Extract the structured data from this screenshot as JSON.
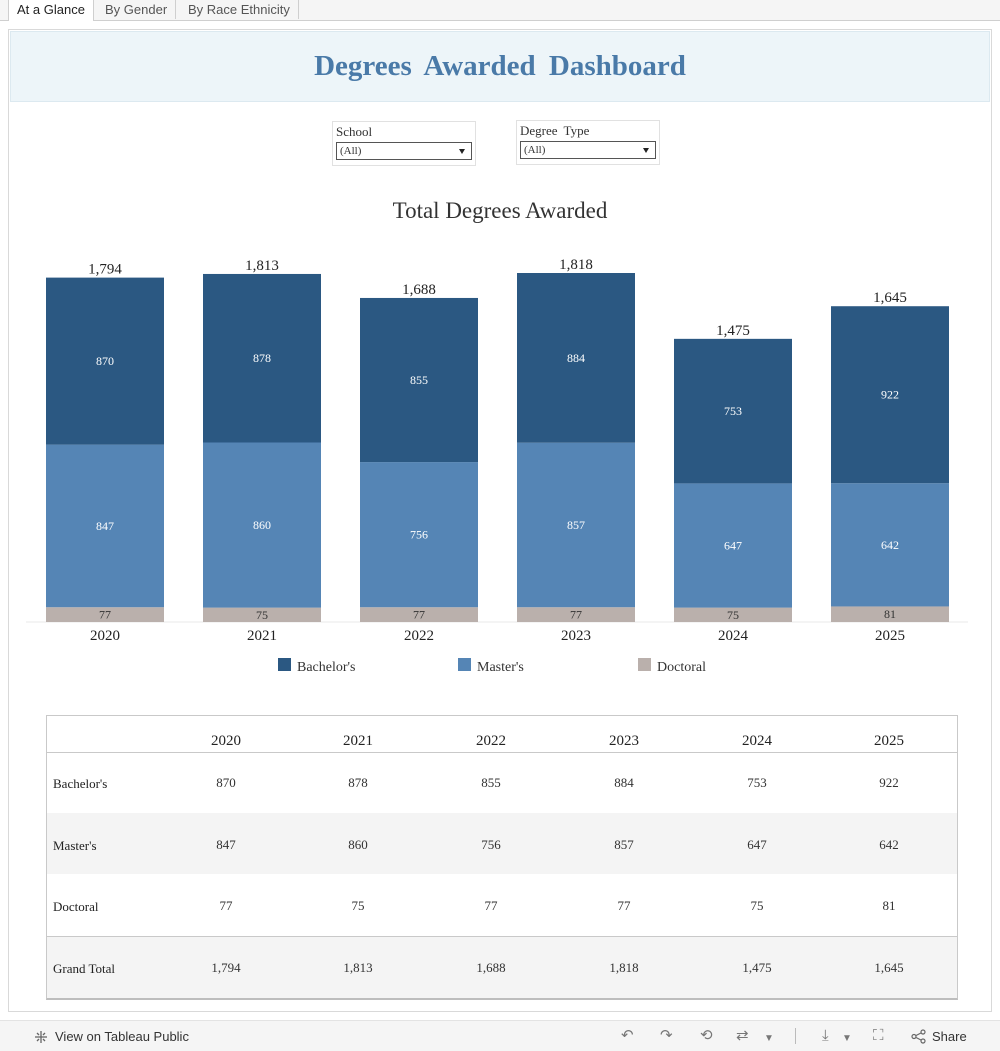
{
  "tabs": [
    {
      "label": "At a Glance",
      "active": true
    },
    {
      "label": "By Gender",
      "active": false
    },
    {
      "label": "By Race Ethnicity",
      "active": false
    }
  ],
  "dashboard": {
    "title": "Degrees  Awarded  Dashboard"
  },
  "filters": {
    "school": {
      "label": "School",
      "value": "(All)"
    },
    "degree_type": {
      "label": "Degree  Type",
      "value": "(All)"
    }
  },
  "colors": {
    "bachelors": "#2b5882",
    "masters": "#5585b5",
    "doctoral": "#bab0ac"
  },
  "chart_data": {
    "type": "bar",
    "stacked": true,
    "title": "Total Degrees Awarded",
    "categories": [
      "2020",
      "2021",
      "2022",
      "2023",
      "2024",
      "2025"
    ],
    "series": [
      {
        "name": "Doctoral",
        "values": [
          77,
          75,
          77,
          77,
          75,
          81
        ]
      },
      {
        "name": "Master's",
        "values": [
          847,
          860,
          756,
          857,
          647,
          642
        ]
      },
      {
        "name": "Bachelor's",
        "values": [
          870,
          878,
          855,
          884,
          753,
          922
        ]
      }
    ],
    "totals": [
      "1,794",
      "1,813",
      "1,688",
      "1,818",
      "1,475",
      "1,645"
    ],
    "totals_numeric": [
      1794,
      1813,
      1688,
      1818,
      1475,
      1645
    ],
    "ylim": [
      0,
      1818
    ],
    "legend": [
      "Bachelor's",
      "Master's",
      "Doctoral"
    ],
    "legend_position": "bottom",
    "grid": false
  },
  "table": {
    "columns": [
      "2020",
      "2021",
      "2022",
      "2023",
      "2024",
      "2025"
    ],
    "rows": [
      {
        "label": "Bachelor's",
        "values": [
          "870",
          "878",
          "855",
          "884",
          "753",
          "922"
        ]
      },
      {
        "label": "Master's",
        "values": [
          "847",
          "860",
          "756",
          "857",
          "647",
          "642"
        ]
      },
      {
        "label": "Doctoral",
        "values": [
          "77",
          "75",
          "77",
          "77",
          "75",
          "81"
        ]
      },
      {
        "label": "Grand Total",
        "values": [
          "1,794",
          "1,813",
          "1,688",
          "1,818",
          "1,475",
          "1,645"
        ]
      }
    ]
  },
  "footer": {
    "view_link": "View on Tableau Public",
    "share": "Share",
    "icons": [
      "tableau-icon",
      "undo-icon",
      "redo-icon",
      "revert-icon",
      "refresh-icon",
      "download-icon",
      "fullscreen-icon",
      "share-icon"
    ]
  }
}
